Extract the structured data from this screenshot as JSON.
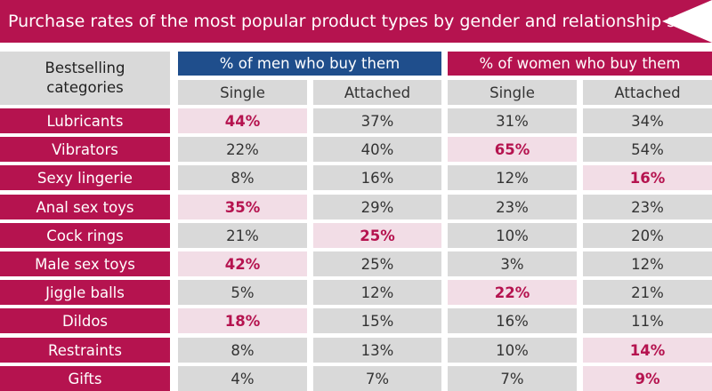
{
  "title": "Purchase rates of the most popular product types by gender and relationship status",
  "header": {
    "categories_label_line1": "Bestselling",
    "categories_label_line2": "categories",
    "groups": [
      "% of men who buy them",
      "% of women who buy them"
    ],
    "subcolumns": [
      "Single",
      "Attached",
      "Single",
      "Attached"
    ]
  },
  "colors": {
    "accent": "#b5134f",
    "men_header": "#1f4e8c",
    "cell_gray": "#d9d9d9",
    "highlight_pink": "#f2dde6"
  },
  "chart_data": {
    "type": "table",
    "title": "Purchase rates of the most popular product types by gender and relationship status",
    "categories": [
      "Lubricants",
      "Vibrators",
      "Sexy lingerie",
      "Anal sex toys",
      "Cock rings",
      "Male sex toys",
      "Jiggle balls",
      "Dildos",
      "Restraints",
      "Gifts"
    ],
    "series": [
      {
        "name": "% of men who buy them - Single",
        "values": [
          44,
          22,
          8,
          35,
          21,
          42,
          5,
          18,
          8,
          4
        ]
      },
      {
        "name": "% of men who buy them - Attached",
        "values": [
          37,
          40,
          16,
          29,
          25,
          25,
          12,
          15,
          13,
          7
        ]
      },
      {
        "name": "% of women who buy them - Single",
        "values": [
          31,
          65,
          12,
          23,
          10,
          3,
          22,
          16,
          10,
          7
        ]
      },
      {
        "name": "% of women who buy them - Attached",
        "values": [
          34,
          54,
          16,
          23,
          20,
          12,
          21,
          11,
          14,
          9
        ]
      }
    ],
    "highlighted": [
      [
        0,
        0
      ],
      [
        1,
        2
      ],
      [
        2,
        3
      ],
      [
        3,
        0
      ],
      [
        4,
        1
      ],
      [
        5,
        0
      ],
      [
        6,
        2
      ],
      [
        7,
        0
      ],
      [
        8,
        3
      ],
      [
        9,
        3
      ]
    ]
  }
}
